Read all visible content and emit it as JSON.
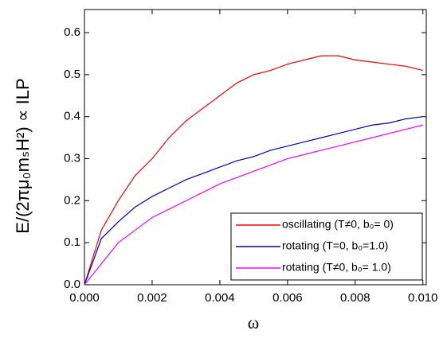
{
  "chart_data": {
    "type": "line",
    "x_label": "ω",
    "y_label": "E/(2πμ₀mₛH²) ∝ ILP",
    "x": [
      0,
      0.0005,
      0.001,
      0.0015,
      0.002,
      0.0025,
      0.003,
      0.0035,
      0.004,
      0.0045,
      0.005,
      0.0055,
      0.006,
      0.0065,
      0.007,
      0.0075,
      0.008,
      0.0085,
      0.009,
      0.0095,
      0.01
    ],
    "series": [
      {
        "name": "oscillating (T≠0, b₀= 0)",
        "color": "#ff0000",
        "values": [
          0,
          0.13,
          0.2,
          0.26,
          0.3,
          0.35,
          0.39,
          0.42,
          0.45,
          0.48,
          0.5,
          0.51,
          0.525,
          0.535,
          0.545,
          0.545,
          0.535,
          0.53,
          0.525,
          0.52,
          0.51
        ]
      },
      {
        "name": "rotating (T=0, b₀=1.0)",
        "color": "#0000cc",
        "values": [
          0,
          0.11,
          0.15,
          0.185,
          0.21,
          0.23,
          0.25,
          0.265,
          0.28,
          0.295,
          0.305,
          0.32,
          0.33,
          0.34,
          0.35,
          0.36,
          0.37,
          0.38,
          0.385,
          0.395,
          0.4
        ]
      },
      {
        "name": "rotating (T≠0, b₀= 1.0)",
        "color": "#ff00ff",
        "values": [
          0,
          0.05,
          0.1,
          0.13,
          0.16,
          0.18,
          0.2,
          0.22,
          0.24,
          0.255,
          0.27,
          0.285,
          0.3,
          0.31,
          0.32,
          0.33,
          0.34,
          0.35,
          0.36,
          0.37,
          0.38
        ]
      }
    ],
    "xlim": [
      0,
      0.0101
    ],
    "ylim": [
      0,
      0.655
    ],
    "xticks": [
      {
        "value": 0,
        "label": "0.000"
      },
      {
        "value": 0.002,
        "label": "0.002"
      },
      {
        "value": 0.004,
        "label": "0.004"
      },
      {
        "value": 0.006,
        "label": "0.006"
      },
      {
        "value": 0.008,
        "label": "0.008"
      },
      {
        "value": 0.01,
        "label": "0.010"
      }
    ],
    "yticks": [
      {
        "value": 0,
        "label": "0.0"
      },
      {
        "value": 0.1,
        "label": "0.1"
      },
      {
        "value": 0.2,
        "label": "0.2"
      },
      {
        "value": 0.3,
        "label": "0.3"
      },
      {
        "value": 0.4,
        "label": "0.4"
      },
      {
        "value": 0.5,
        "label": "0.5"
      },
      {
        "value": 0.6,
        "label": "0.6"
      }
    ],
    "legend": "lower right"
  }
}
